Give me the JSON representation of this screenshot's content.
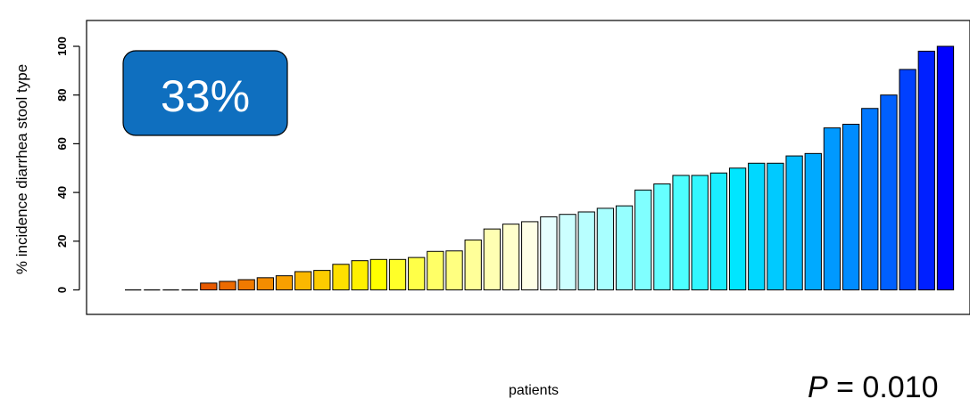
{
  "chart_data": {
    "type": "bar",
    "ylabel": "% incidence diarrhea stool type",
    "xlabel": "patients",
    "ylim": [
      -10,
      110
    ],
    "yticks": [
      "0",
      "20",
      "40",
      "60",
      "80",
      "100"
    ],
    "grid": false,
    "values": [
      0,
      0,
      0,
      0,
      2.8,
      3.5,
      4.2,
      5.0,
      5.8,
      7.5,
      8.0,
      10.5,
      12.0,
      12.5,
      12.5,
      13.3,
      15.8,
      16.0,
      20.5,
      25.0,
      27.0,
      28.0,
      30.0,
      31.0,
      32.0,
      33.5,
      34.5,
      41.0,
      43.5,
      47.0,
      47.0,
      48.0,
      50.0,
      52.0,
      52.0,
      55.0,
      56.0,
      66.5,
      68.0,
      74.5,
      80.0,
      90.5,
      98.0,
      100.0
    ],
    "colors": [
      "#000000",
      "#000000",
      "#000000",
      "#000000",
      "#e85a00",
      "#ec6a00",
      "#f07a00",
      "#f48c00",
      "#f8a000",
      "#fbb800",
      "#fdcc00",
      "#ffe000",
      "#fff000",
      "#ffff00",
      "#ffff28",
      "#ffff48",
      "#ffff66",
      "#ffff80",
      "#ffff99",
      "#ffffb3",
      "#ffffcc",
      "#ffffe6",
      "#e6ffff",
      "#ccffff",
      "#b8ffff",
      "#a8ffff",
      "#96ffff",
      "#80ffff",
      "#66ffff",
      "#4dffff",
      "#33f7ff",
      "#1aeeff",
      "#00e6ff",
      "#00d8ff",
      "#00caff",
      "#00bbff",
      "#00aaff",
      "#0099ff",
      "#008cff",
      "#0078ff",
      "#0060ff",
      "#0040ff",
      "#0020ff",
      "#0000ff"
    ],
    "annotations": {
      "badge": "33%",
      "p_prefix": "P",
      "p_value": " = 0.010",
      "badge_color": "#0f6fbf"
    }
  }
}
